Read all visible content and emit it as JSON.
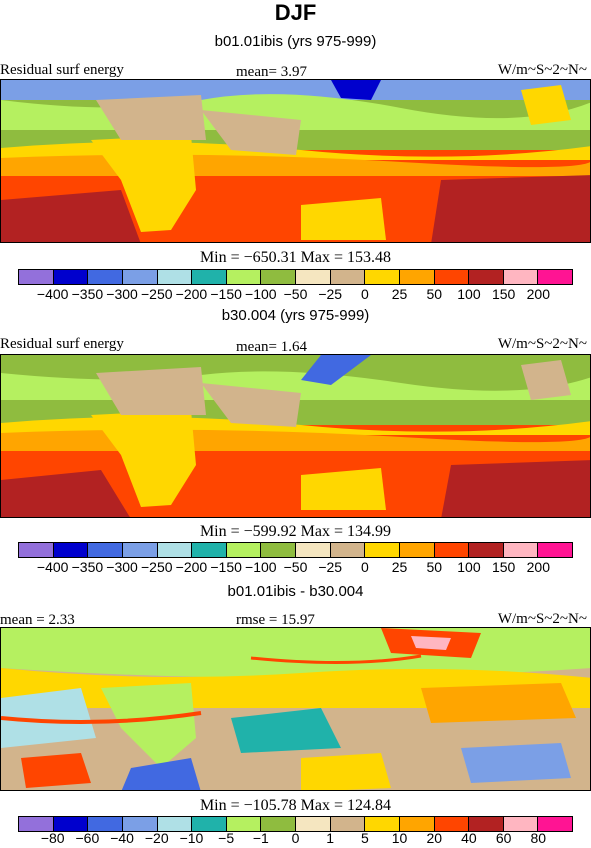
{
  "figure": {
    "title": "DJF"
  },
  "panels": [
    {
      "subtitle": "b01.01ibis (yrs 975-999)",
      "left_label": "Residual surf energy",
      "center_label": "mean=   3.97",
      "right_label": "W/m~S~2~N~",
      "stats": "Min = −650.31 Max = 153.48",
      "tick_labels": [
        "−400",
        "−350",
        "−300",
        "−250",
        "−200",
        "−150",
        "−100",
        "−50",
        "−25",
        "0",
        "25",
        "50",
        "100",
        "150",
        "200"
      ]
    },
    {
      "subtitle": "b30.004 (yrs 975-999)",
      "left_label": "Residual surf energy",
      "center_label": "mean=   1.64",
      "right_label": "W/m~S~2~N~",
      "stats": "Min = −599.92 Max = 134.99",
      "tick_labels": [
        "−400",
        "−350",
        "−300",
        "−250",
        "−200",
        "−150",
        "−100",
        "−50",
        "−25",
        "0",
        "25",
        "50",
        "100",
        "150",
        "200"
      ]
    },
    {
      "subtitle": "b01.01ibis - b30.004",
      "left_label": "mean =    2.33",
      "center_label": "rmse =   15.97",
      "right_label": "W/m~S~2~N~",
      "stats": "Min = −105.78 Max = 124.84",
      "tick_labels": [
        "−80",
        "−60",
        "−40",
        "−20",
        "−10",
        "−5",
        "−1",
        "0",
        "1",
        "5",
        "10",
        "20",
        "40",
        "60",
        "80"
      ]
    }
  ],
  "colorbar_colors": [
    "#9370db",
    "#0000cd",
    "#4169e1",
    "#7b9fe6",
    "#afe0e6",
    "#20b2aa",
    "#b5f060",
    "#8fbc3f",
    "#f5e6c0",
    "#d2b48c",
    "#ffd700",
    "#ffa500",
    "#ff4500",
    "#b22222",
    "#ffb6c1",
    "#ff1493"
  ]
}
